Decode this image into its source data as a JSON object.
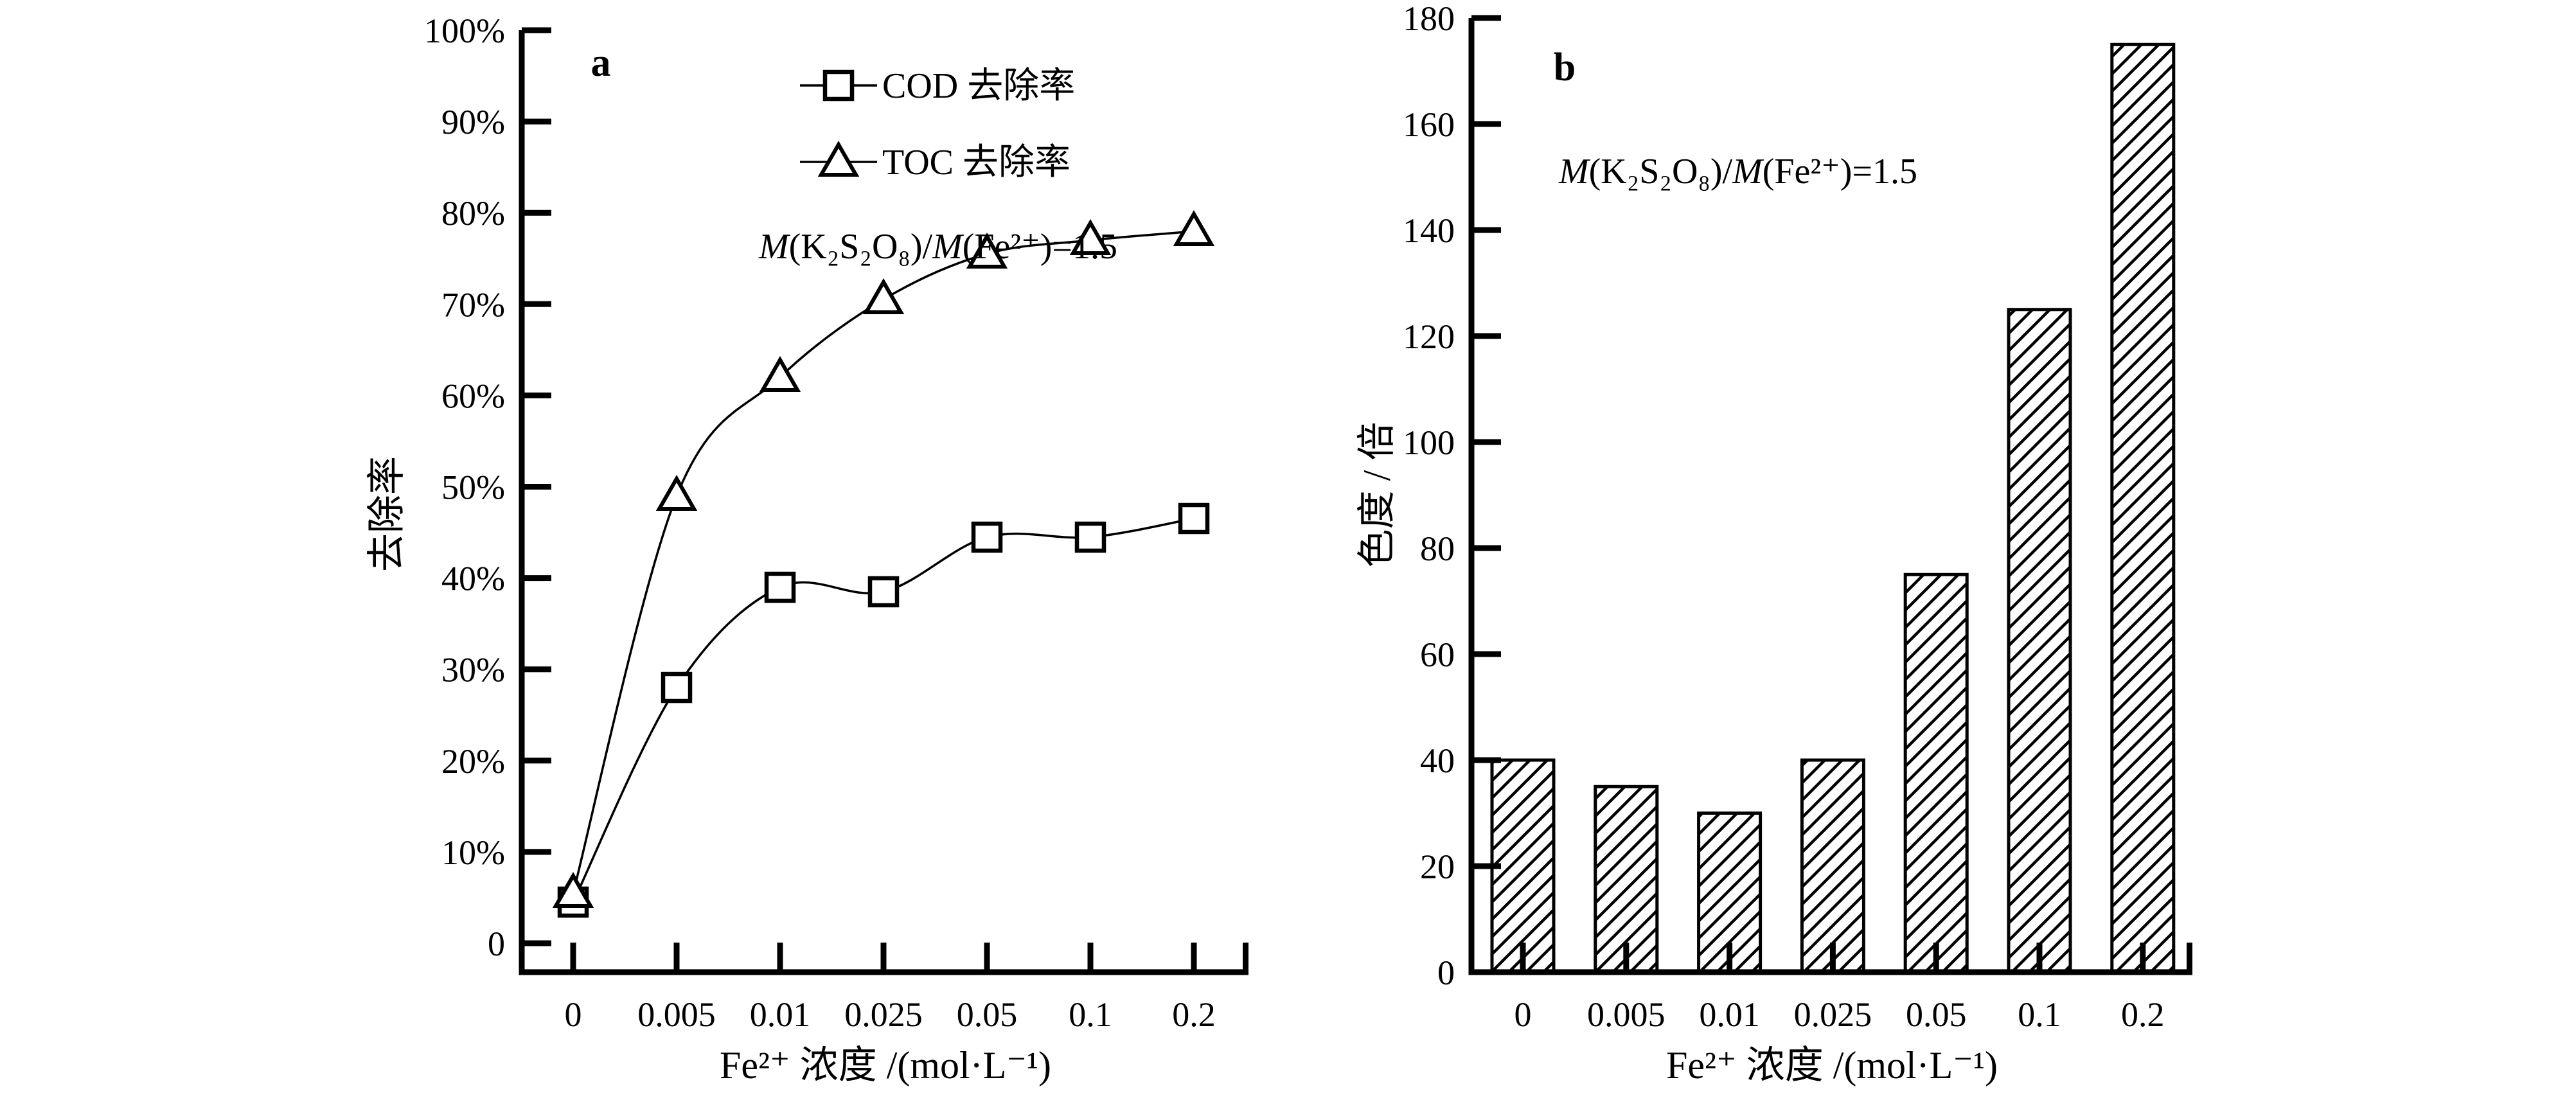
{
  "colors": {
    "ink": "#000000",
    "background": "#ffffff"
  },
  "chart_data": [
    {
      "type": "line",
      "panel_label": "a",
      "categories": [
        "0",
        "0.005",
        "0.01",
        "0.025",
        "0.05",
        "0.1",
        "0.2"
      ],
      "series": [
        {
          "name": "COD 去除率",
          "marker": "square",
          "values": [
            4.5,
            28,
            39,
            38.5,
            44.5,
            44.5,
            46.5
          ]
        },
        {
          "name": "TOC 去除率",
          "marker": "triangle",
          "values": [
            5.5,
            49,
            62,
            70.5,
            75.5,
            77,
            78
          ]
        }
      ],
      "legend": [
        {
          "marker": "square",
          "label": "COD 去除率"
        },
        {
          "marker": "triangle",
          "label": "TOC 去除率"
        }
      ],
      "legend_position": "top-center-inside",
      "annotation": [
        {
          "text": "M",
          "italic": true
        },
        {
          "text": "(K₂S₂O₈)/",
          "italic": false
        },
        {
          "text": "M",
          "italic": true
        },
        {
          "text": "(Fe²⁺)=1.5",
          "italic": false
        }
      ],
      "xlabel": "Fe²⁺ 浓度 /(mol·L⁻¹)",
      "ylabel": "去除率",
      "ylim": [
        0,
        100
      ],
      "ytick_step": 10,
      "ytick_labels": [
        "0",
        "10%",
        "20%",
        "30%",
        "40%",
        "50%",
        "60%",
        "70%",
        "80%",
        "90%",
        "100%"
      ],
      "grid": false
    },
    {
      "type": "bar",
      "panel_label": "b",
      "categories": [
        "0",
        "0.005",
        "0.01",
        "0.025",
        "0.05",
        "0.1",
        "0.2"
      ],
      "values": [
        40,
        35,
        30,
        40,
        75,
        125,
        175
      ],
      "bar_fill": "diagonal-hatch",
      "annotation": [
        {
          "text": "M",
          "italic": true
        },
        {
          "text": "(K₂S₂O₈)/",
          "italic": false
        },
        {
          "text": "M",
          "italic": true
        },
        {
          "text": "(Fe²⁺)=1.5",
          "italic": false
        }
      ],
      "xlabel": "Fe²⁺ 浓度 /(mol·L⁻¹)",
      "ylabel": "色度 / 倍",
      "ylim": [
        0,
        180
      ],
      "ytick_step": 20,
      "ytick_labels": [
        "0",
        "20",
        "40",
        "60",
        "80",
        "100",
        "120",
        "140",
        "160",
        "180"
      ],
      "grid": false
    }
  ]
}
